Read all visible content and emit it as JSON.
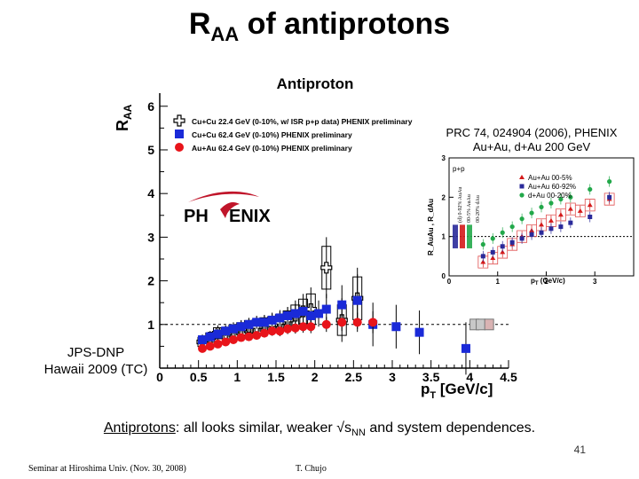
{
  "slide": {
    "title_main": "R",
    "title_sub": "AA",
    "title_rest": " of antiprotons",
    "jps_line1": "JPS-DNP",
    "jps_line2": "Hawaii 2009 (TC)",
    "bottom_lead": "Antiprotons",
    "bottom_rest_1": ": all looks similar, weaker √s",
    "bottom_sub": "NN",
    "bottom_rest_2": " and system dependences.",
    "slide_number": "41",
    "footer_left": "Seminar at Hiroshima Univ. (Nov. 30, 2008)",
    "footer_right": "T. Chujo"
  },
  "logo": {
    "text_left": "PH",
    "text_right": "ENIX",
    "accent": "#c0152a"
  },
  "chart_data": [
    {
      "type": "scatter",
      "title": "Antiproton",
      "ylabel_main": "R",
      "ylabel_sub": "AA",
      "xlabel_main": "p",
      "xlabel_sub": "T",
      "xlabel_unit": " [GeV/c]",
      "xlim": [
        0,
        4.5
      ],
      "ylim": [
        0,
        6.3
      ],
      "xticks": [
        "0",
        "0.5",
        "1",
        "1.5",
        "2",
        "2.5",
        "3",
        "3.5",
        "4",
        "4.5"
      ],
      "yticks": [
        "1",
        "2",
        "3",
        "4",
        "5",
        "6"
      ],
      "reference_line": 1,
      "legend_position": "top-left",
      "series": [
        {
          "name": "Cu+Cu 22.4 GeV (0-10%, w/ ISR p+p data) PHENIX preliminary",
          "marker": "open-cross",
          "color": "#000000",
          "x": [
            0.55,
            0.65,
            0.75,
            0.85,
            0.95,
            1.05,
            1.15,
            1.25,
            1.35,
            1.45,
            1.55,
            1.65,
            1.75,
            1.85,
            1.95,
            2.15,
            2.35,
            2.55
          ],
          "y": [
            0.6,
            0.7,
            0.8,
            0.8,
            0.85,
            0.9,
            0.95,
            0.95,
            1.0,
            1.0,
            1.05,
            1.1,
            1.2,
            1.3,
            1.35,
            2.3,
            1.1,
            1.6
          ],
          "yerr": [
            0.15,
            0.15,
            0.18,
            0.18,
            0.2,
            0.2,
            0.2,
            0.22,
            0.22,
            0.25,
            0.25,
            0.3,
            0.35,
            0.4,
            0.5,
            0.7,
            0.5,
            0.7
          ]
        },
        {
          "name": "Cu+Cu 62.4 GeV (0-10%) PHENIX preliminary",
          "marker": "square",
          "color": "#1a2ad8",
          "x": [
            0.55,
            0.65,
            0.75,
            0.85,
            0.95,
            1.05,
            1.15,
            1.25,
            1.35,
            1.45,
            1.55,
            1.65,
            1.75,
            1.85,
            1.95,
            2.05,
            2.15,
            2.35,
            2.55,
            2.75,
            3.05,
            3.35,
            3.95
          ],
          "y": [
            0.65,
            0.72,
            0.78,
            0.85,
            0.9,
            0.95,
            1.0,
            1.05,
            1.05,
            1.1,
            1.15,
            1.2,
            1.25,
            1.3,
            1.2,
            1.25,
            1.35,
            1.45,
            1.55,
            1.0,
            0.95,
            0.82,
            0.45
          ],
          "yerr": [
            0.12,
            0.12,
            0.12,
            0.12,
            0.14,
            0.14,
            0.15,
            0.15,
            0.16,
            0.17,
            0.18,
            0.2,
            0.22,
            0.25,
            0.28,
            0.3,
            0.35,
            0.45,
            0.6,
            0.5,
            0.5,
            0.5,
            0.6
          ]
        },
        {
          "name": "Au+Au 62.4 GeV (0-10%) PHENIX preliminary",
          "marker": "circle",
          "color": "#e8141a",
          "x": [
            0.55,
            0.65,
            0.75,
            0.85,
            0.95,
            1.05,
            1.15,
            1.25,
            1.35,
            1.45,
            1.55,
            1.65,
            1.75,
            1.85,
            1.95,
            2.15,
            2.35,
            2.55,
            2.75
          ],
          "y": [
            0.45,
            0.5,
            0.55,
            0.6,
            0.65,
            0.7,
            0.72,
            0.75,
            0.8,
            0.85,
            0.85,
            0.9,
            0.92,
            0.95,
            0.95,
            1.0,
            1.05,
            1.05,
            1.05
          ],
          "yerr": [
            0.08,
            0.08,
            0.08,
            0.08,
            0.09,
            0.09,
            0.1,
            0.1,
            0.1,
            0.11,
            0.12,
            0.12,
            0.13,
            0.14,
            0.15,
            0.17,
            0.2,
            0.22,
            0.25
          ]
        }
      ]
    },
    {
      "type": "scatter",
      "citation_line1": "PRC 74, 024904 (2006), PHENIX",
      "citation_line2": "Au+Au, d+Au 200 GeV",
      "panel_label": "p+p",
      "ylabel": "R_AuAu , R_dAu",
      "xlabel_main": "p",
      "xlabel_sub": "T",
      "xlabel_unit": " (GeV/c)",
      "xlim": [
        0,
        3.8
      ],
      "ylim": [
        0,
        3
      ],
      "xticks": [
        "0",
        "1",
        "2",
        "3"
      ],
      "yticks": [
        "0",
        "1",
        "2",
        "3"
      ],
      "legend_position": "top-right",
      "series": [
        {
          "name": "Au+Au 00-5%",
          "marker": "triangle",
          "color": "#d41a1a",
          "x": [
            0.7,
            0.9,
            1.1,
            1.3,
            1.5,
            1.7,
            1.9,
            2.1,
            2.3,
            2.5,
            2.7,
            2.9,
            3.3
          ],
          "y": [
            0.35,
            0.45,
            0.6,
            0.8,
            1.0,
            1.15,
            1.3,
            1.4,
            1.55,
            1.7,
            1.65,
            1.8,
            1.95
          ]
        },
        {
          "name": "Au+Au 60-92%",
          "marker": "square",
          "color": "#2a2a9a",
          "x": [
            0.7,
            0.9,
            1.1,
            1.3,
            1.5,
            1.7,
            1.9,
            2.1,
            2.3,
            2.5,
            2.9,
            3.3
          ],
          "y": [
            0.5,
            0.6,
            0.75,
            0.85,
            0.95,
            1.05,
            1.1,
            1.2,
            1.25,
            1.35,
            1.5,
            2.0
          ]
        },
        {
          "name": "d+Au 00-20%",
          "marker": "circle",
          "color": "#22a84a",
          "x": [
            0.7,
            0.9,
            1.1,
            1.3,
            1.5,
            1.7,
            1.9,
            2.1,
            2.3,
            2.5,
            2.9,
            3.3
          ],
          "y": [
            0.8,
            0.95,
            1.1,
            1.25,
            1.45,
            1.6,
            1.75,
            1.85,
            1.95,
            2.0,
            2.2,
            2.4
          ]
        }
      ],
      "vertical_labels": [
        "(d) 0-92% AuAu",
        "00-5% AuAu",
        "00-20% dAu"
      ]
    }
  ]
}
